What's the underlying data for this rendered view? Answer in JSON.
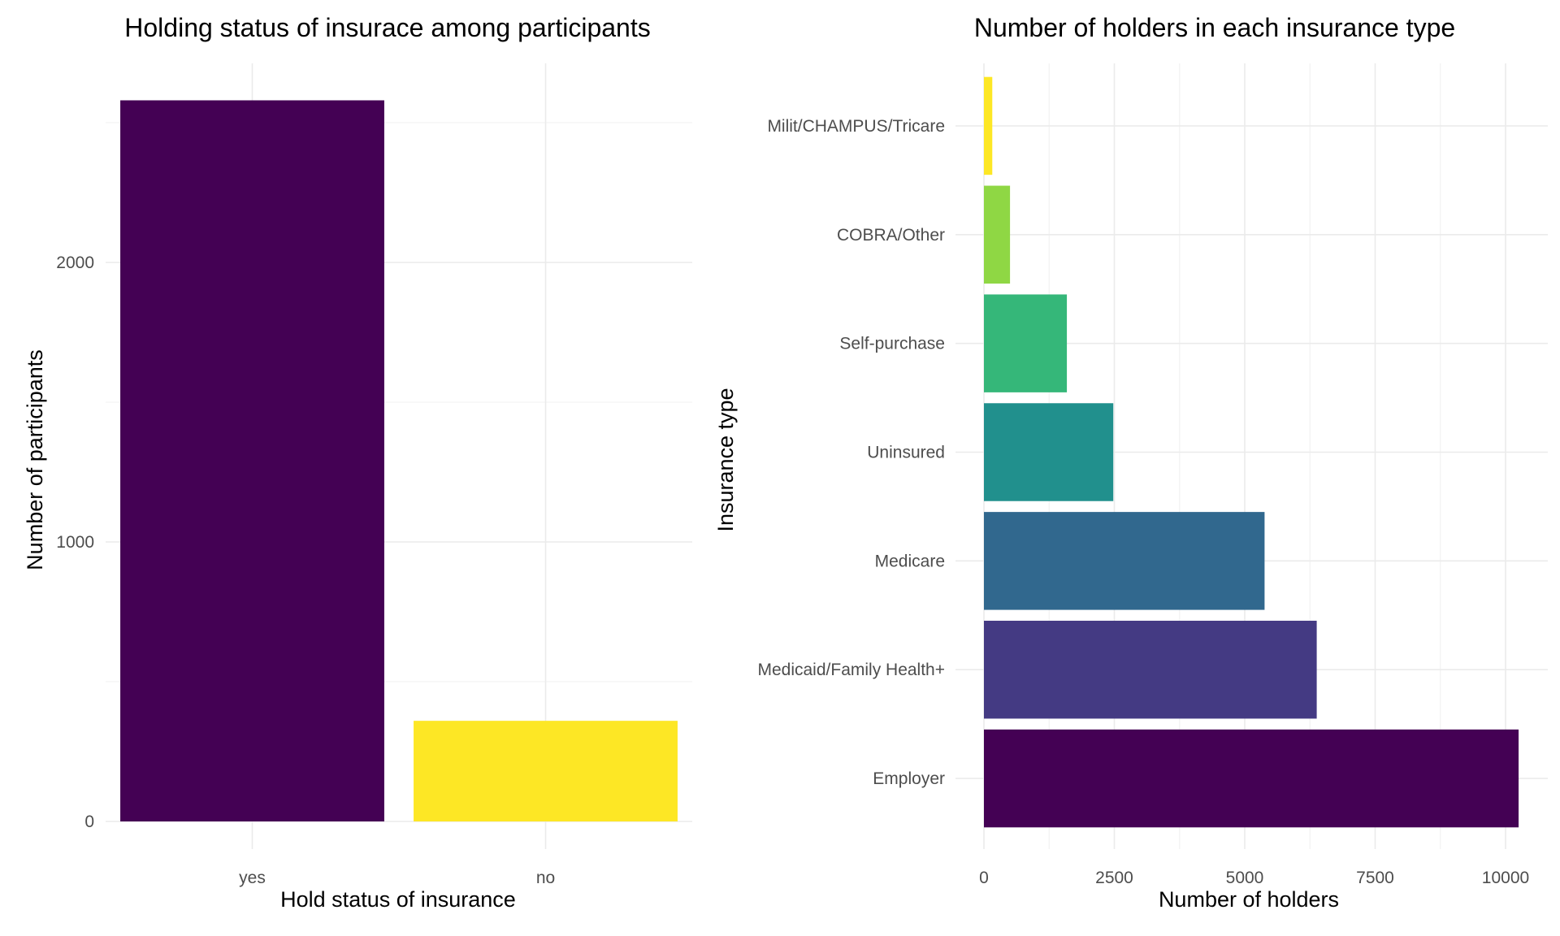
{
  "chart_data": [
    {
      "type": "bar",
      "orientation": "vertical",
      "title": "Holding status of insurace among participants",
      "xlabel": "Hold status of insurance",
      "ylabel": "Number of participants",
      "categories": [
        "yes",
        "no"
      ],
      "values": [
        2580,
        360
      ],
      "colors": [
        "#440154",
        "#fde725"
      ],
      "ylim": [
        0,
        2700
      ],
      "yticks": [
        0,
        1000,
        2000
      ],
      "grid": true,
      "legend": "none"
    },
    {
      "type": "bar",
      "orientation": "horizontal",
      "title": "Number of holders in each insurance type",
      "xlabel": "Number of holders",
      "ylabel": "Insurance type",
      "categories": [
        "Employer",
        "Medicaid/Family Health+",
        "Medicare",
        "Uninsured",
        "Self-purchase",
        "COBRA/Other",
        "Milit/CHAMPUS/Tricare"
      ],
      "values": [
        10250,
        6380,
        5380,
        2480,
        1590,
        500,
        160
      ],
      "colors": [
        "#440154",
        "#443a83",
        "#31688e",
        "#21908d",
        "#35b779",
        "#8fd744",
        "#fde725"
      ],
      "xlim": [
        0,
        10250
      ],
      "xticks": [
        0,
        2500,
        5000,
        7500,
        10000
      ],
      "grid": true,
      "legend": "none"
    }
  ]
}
